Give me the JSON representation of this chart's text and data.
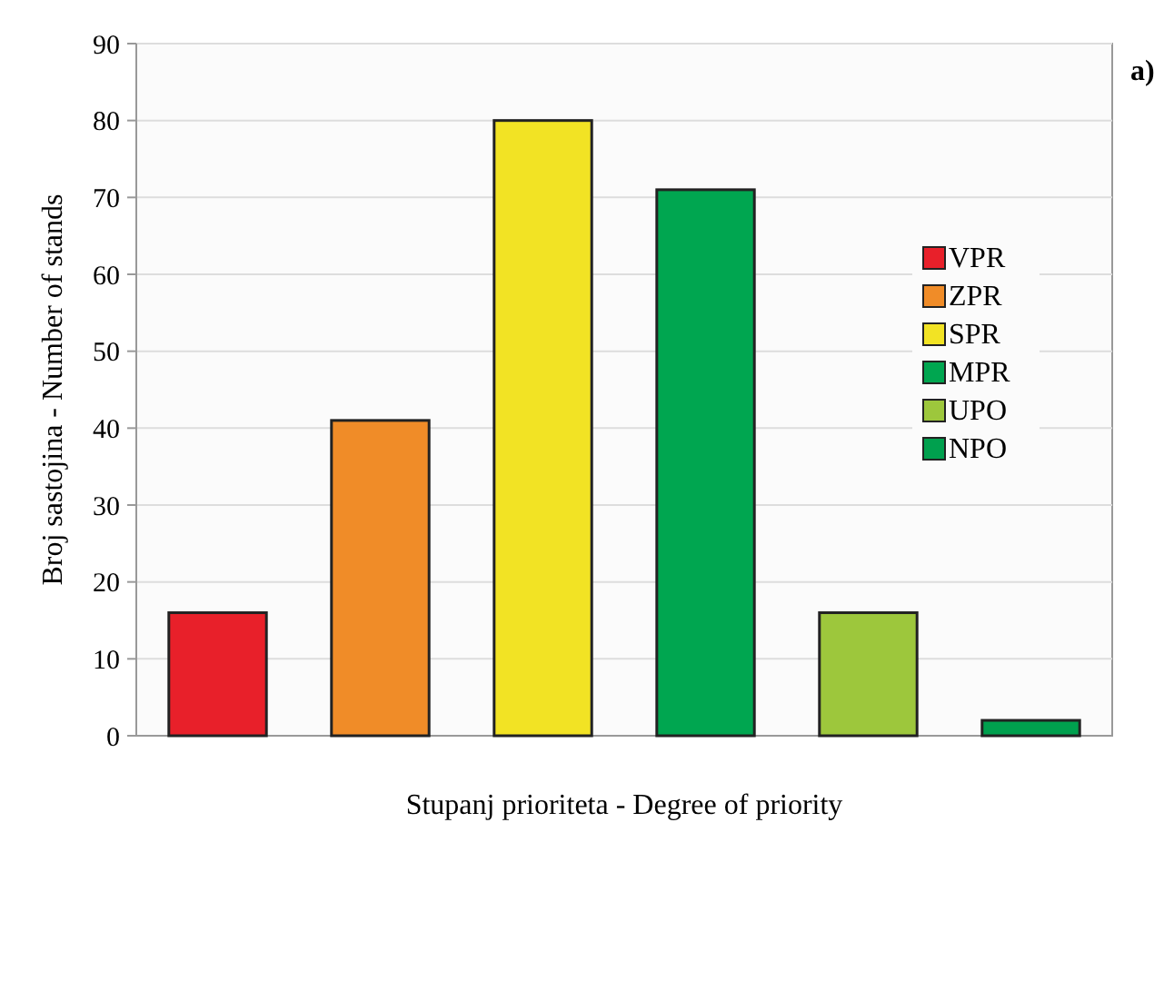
{
  "chart_data": {
    "type": "bar",
    "xlabel": "Stupanj prioriteta - Degree of priority",
    "ylabel": "Broj sastojina - Number of stands",
    "annotations": [
      "a)"
    ],
    "categories": [
      null,
      null,
      null,
      null,
      null,
      null
    ],
    "series": [
      {
        "name": "VPR",
        "color": "#e8202a",
        "values": [
          16,
          null,
          null,
          null,
          null,
          null
        ]
      },
      {
        "name": "ZPR",
        "color": "#f08c28",
        "values": [
          null,
          41,
          null,
          null,
          null,
          null
        ]
      },
      {
        "name": "SPR",
        "color": "#f2e324",
        "values": [
          null,
          null,
          80,
          null,
          null,
          null
        ]
      },
      {
        "name": "MPR",
        "color": "#00a650",
        "values": [
          null,
          null,
          null,
          71,
          null,
          null
        ]
      },
      {
        "name": "UPO",
        "color": "#9dc73c",
        "values": [
          null,
          null,
          null,
          null,
          16,
          null
        ]
      },
      {
        "name": "NPO",
        "color": "#00a04e",
        "values": [
          null,
          null,
          null,
          null,
          null,
          2
        ]
      }
    ],
    "ylim": [
      0,
      90
    ],
    "yticks": [
      0,
      10,
      20,
      30,
      40,
      50,
      60,
      70,
      80,
      90
    ],
    "grid": "y",
    "legend": "right"
  }
}
